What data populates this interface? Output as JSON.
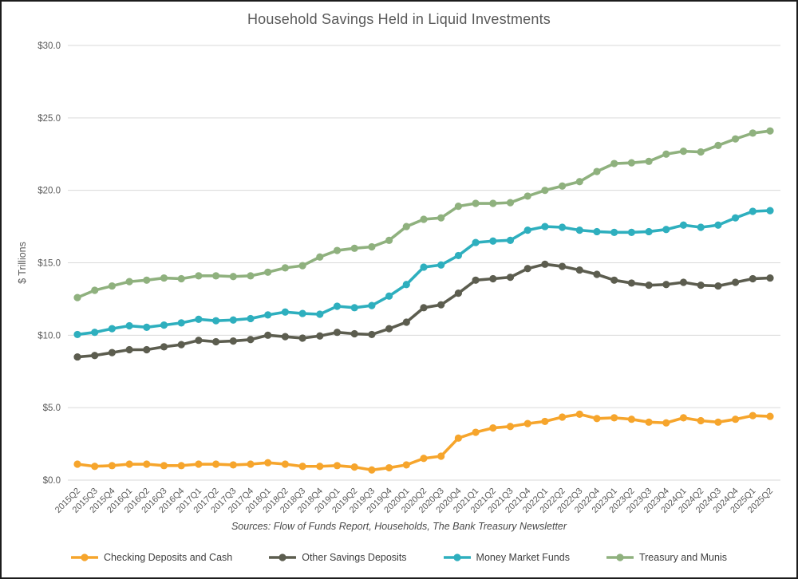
{
  "chart_data": {
    "type": "line",
    "title": "Household Savings Held in Liquid Investments",
    "ylabel": "$ Trillions",
    "xlabel": "",
    "source_note": "Sources: Flow of Funds Report, Households, The Bank Treasury Newsletter",
    "ylim": [
      0,
      30
    ],
    "grid": "horizontal",
    "legend_position": "bottom",
    "y_ticks": [
      {
        "value": 0,
        "label": "$0.0"
      },
      {
        "value": 5,
        "label": "$5.0"
      },
      {
        "value": 10,
        "label": "$10.0"
      },
      {
        "value": 15,
        "label": "$15.0"
      },
      {
        "value": 20,
        "label": "$20.0"
      },
      {
        "value": 25,
        "label": "$25.0"
      },
      {
        "value": 30,
        "label": "$30.0"
      }
    ],
    "categories": [
      "2015Q2",
      "2015Q3",
      "2015Q4",
      "2016Q1",
      "2016Q2",
      "2016Q3",
      "2016Q4",
      "2017Q1",
      "2017Q2",
      "2017Q3",
      "2017Q4",
      "2018Q1",
      "2018Q2",
      "2018Q3",
      "2018Q4",
      "2019Q1",
      "2019Q2",
      "2019Q3",
      "2019Q4",
      "2020Q1",
      "2020Q2",
      "2020Q3",
      "2020Q4",
      "2021Q1",
      "2021Q2",
      "2021Q3",
      "2021Q4",
      "2022Q1",
      "2022Q2",
      "2022Q3",
      "2022Q4",
      "2023Q1",
      "2023Q2",
      "2023Q3",
      "2023Q4",
      "2024Q1",
      "2024Q2",
      "2024Q3",
      "2024Q4",
      "2025Q1",
      "2025Q2"
    ],
    "series": [
      {
        "name": "Checking Deposits and Cash",
        "color": "#F6A52C",
        "values": [
          1.1,
          0.95,
          1.0,
          1.1,
          1.1,
          1.0,
          1.0,
          1.1,
          1.1,
          1.05,
          1.1,
          1.2,
          1.1,
          0.95,
          0.95,
          1.0,
          0.9,
          0.7,
          0.85,
          1.05,
          1.5,
          1.65,
          2.9,
          3.3,
          3.6,
          3.7,
          3.9,
          4.05,
          4.35,
          4.55,
          4.25,
          4.3,
          4.2,
          4.0,
          3.95,
          4.3,
          4.1,
          4.0,
          4.2,
          4.45,
          4.4
        ]
      },
      {
        "name": "Other Savings Deposits",
        "color": "#5C5D4F",
        "values": [
          8.5,
          8.6,
          8.8,
          9.0,
          9.0,
          9.2,
          9.35,
          9.65,
          9.55,
          9.6,
          9.7,
          10.0,
          9.9,
          9.8,
          9.95,
          10.2,
          10.1,
          10.05,
          10.45,
          10.9,
          11.9,
          12.1,
          12.9,
          13.8,
          13.9,
          14.0,
          14.6,
          14.9,
          14.75,
          14.5,
          14.2,
          13.8,
          13.6,
          13.45,
          13.5,
          13.65,
          13.45,
          13.4,
          13.65,
          13.9,
          13.95
        ]
      },
      {
        "name": "Money Market Funds",
        "color": "#2EAFBE",
        "values": [
          10.05,
          10.2,
          10.45,
          10.65,
          10.55,
          10.7,
          10.85,
          11.1,
          11.0,
          11.05,
          11.15,
          11.4,
          11.6,
          11.5,
          11.45,
          12.0,
          11.9,
          12.05,
          12.7,
          13.5,
          14.7,
          14.85,
          15.5,
          16.4,
          16.5,
          16.55,
          17.25,
          17.5,
          17.45,
          17.25,
          17.15,
          17.1,
          17.1,
          17.15,
          17.3,
          17.6,
          17.45,
          17.6,
          18.1,
          18.55,
          18.6
        ]
      },
      {
        "name": "Treasury and Munis",
        "color": "#8FB17E",
        "values": [
          12.6,
          13.1,
          13.4,
          13.7,
          13.8,
          13.95,
          13.9,
          14.1,
          14.1,
          14.05,
          14.1,
          14.35,
          14.65,
          14.8,
          15.4,
          15.85,
          16.0,
          16.1,
          16.55,
          17.5,
          18.0,
          18.1,
          18.9,
          19.1,
          19.1,
          19.15,
          19.6,
          20.0,
          20.3,
          20.6,
          21.3,
          21.85,
          21.9,
          22.0,
          22.5,
          22.7,
          22.65,
          23.1,
          23.55,
          23.95,
          24.1
        ]
      }
    ]
  },
  "colors": {
    "title_text": "#595959",
    "axis_text": "#595959",
    "gridline": "#DADADA",
    "background": "#FFFFFF",
    "frame_border": "#1C1C1C"
  }
}
